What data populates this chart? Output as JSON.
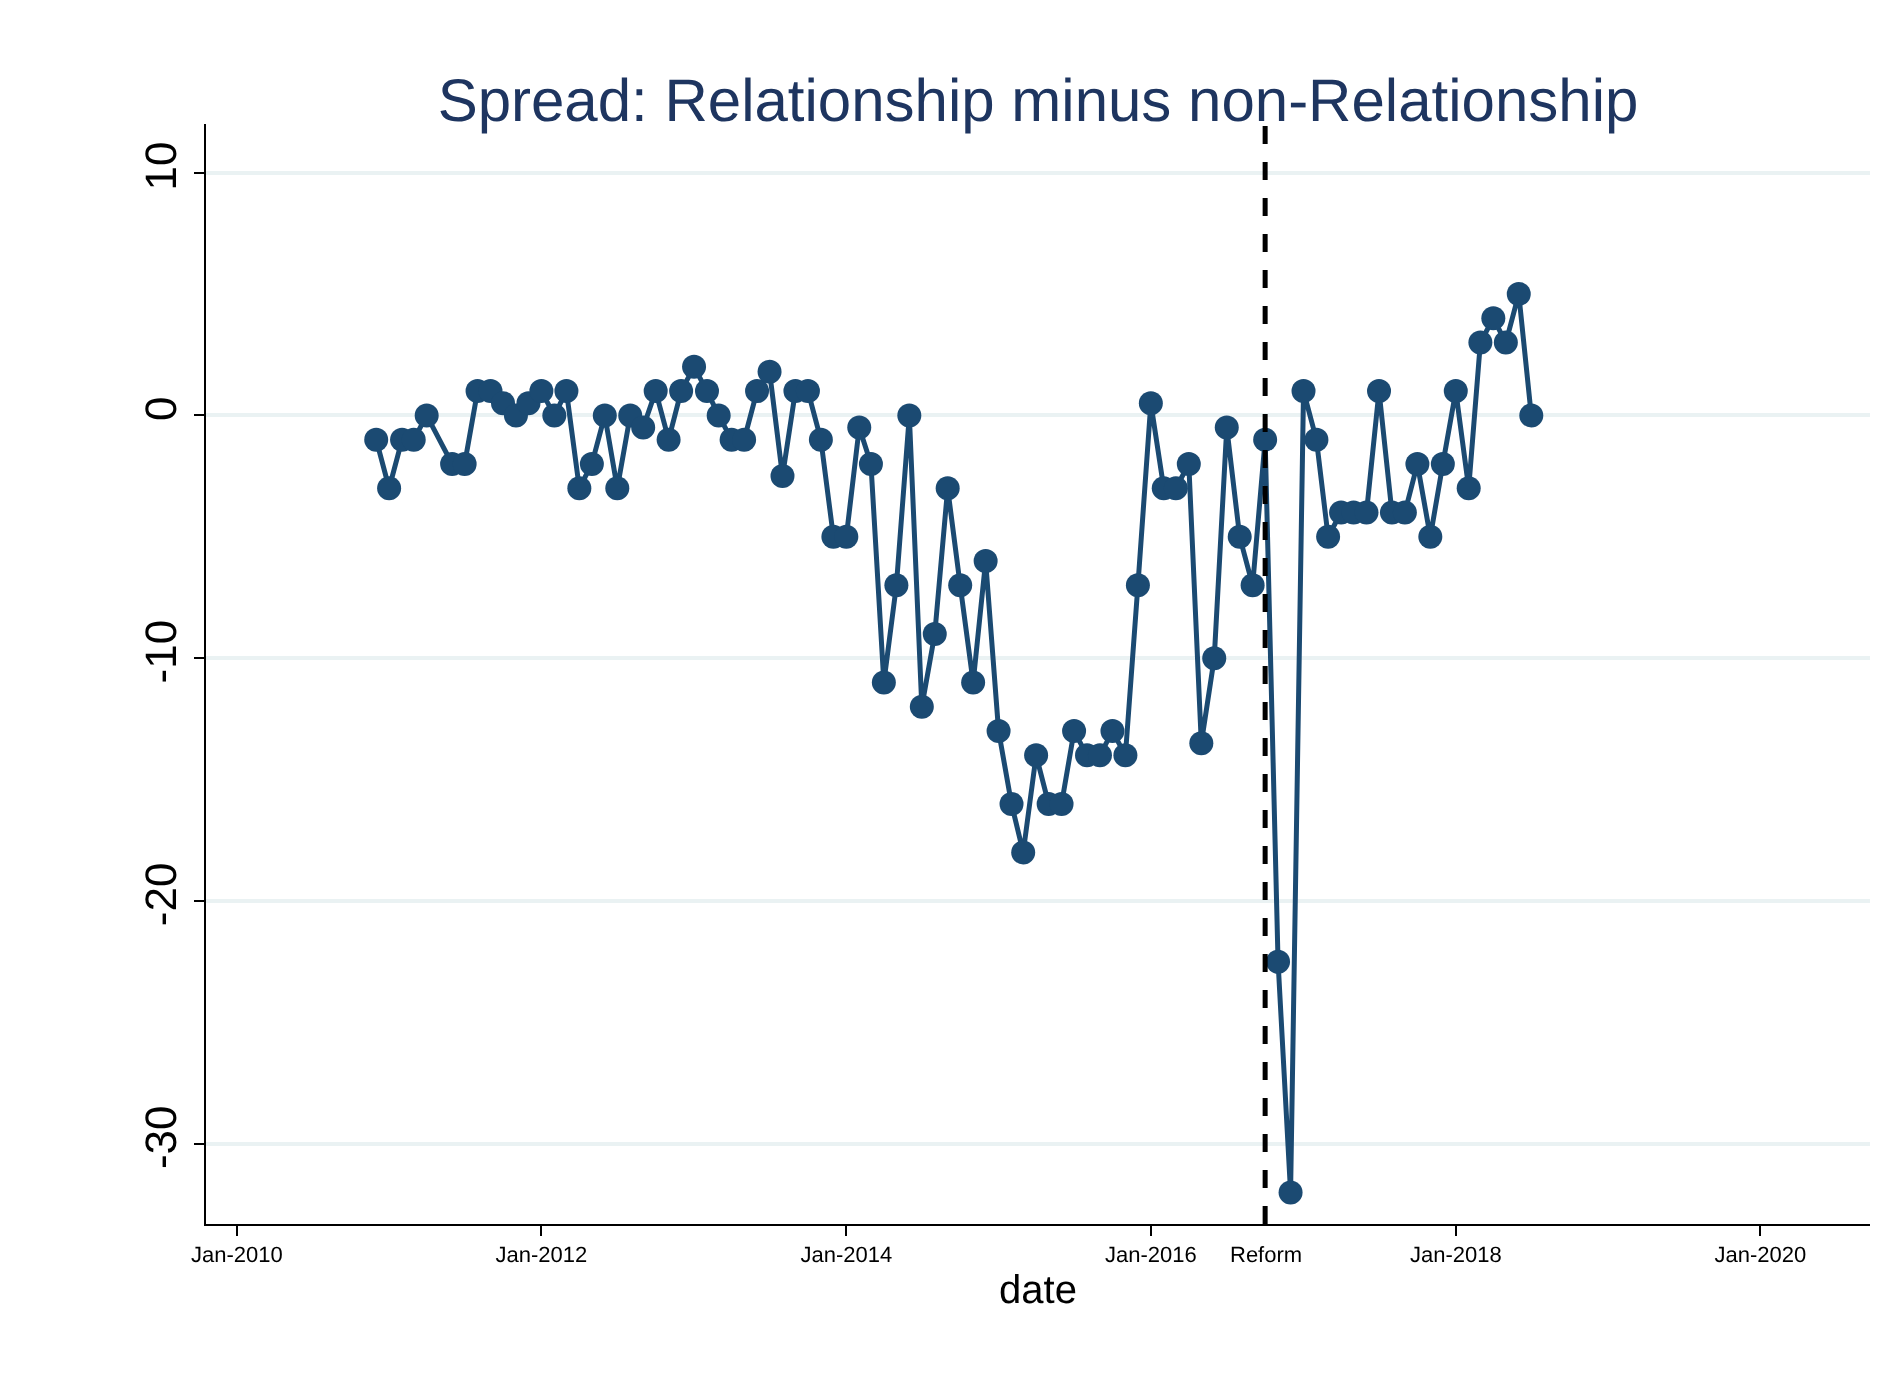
{
  "chart_data": {
    "type": "line",
    "title": "Spread: Relationship minus non-Relationship",
    "xlabel": "date",
    "x": [
      "2010-12",
      "2011-01",
      "2011-02",
      "2011-03",
      "2011-04",
      "2011-06",
      "2011-07",
      "2011-08",
      "2011-09",
      "2011-10",
      "2011-11",
      "2011-12",
      "2012-01",
      "2012-02",
      "2012-03",
      "2012-04",
      "2012-05",
      "2012-06",
      "2012-07",
      "2012-08",
      "2012-09",
      "2012-10",
      "2012-11",
      "2012-12",
      "2013-01",
      "2013-02",
      "2013-03",
      "2013-04",
      "2013-05",
      "2013-06",
      "2013-07",
      "2013-08",
      "2013-09",
      "2013-10",
      "2013-11",
      "2013-12",
      "2014-01",
      "2014-02",
      "2014-03",
      "2014-04",
      "2014-05",
      "2014-06",
      "2014-07",
      "2014-08",
      "2014-09",
      "2014-10",
      "2014-11",
      "2014-12",
      "2015-01",
      "2015-02",
      "2015-03",
      "2015-04",
      "2015-05",
      "2015-06",
      "2015-07",
      "2015-08",
      "2015-09",
      "2015-10",
      "2015-11",
      "2015-12",
      "2016-01",
      "2016-02",
      "2016-03",
      "2016-04",
      "2016-05",
      "2016-06",
      "2016-07",
      "2016-08",
      "2016-09",
      "2016-10",
      "2016-11",
      "2016-12",
      "2017-01",
      "2017-02",
      "2017-03",
      "2017-04",
      "2017-05",
      "2017-06",
      "2017-07",
      "2017-08",
      "2017-09",
      "2017-10",
      "2017-11",
      "2017-12",
      "2018-01",
      "2018-02",
      "2018-03",
      "2018-04",
      "2018-05",
      "2018-06",
      "2018-07"
    ],
    "series": [
      {
        "color": "#1b4a72",
        "values": [
          -1,
          -3,
          -1,
          -1,
          0,
          -2,
          -2,
          1,
          1,
          0.5,
          0,
          0.5,
          1,
          0,
          1,
          -3,
          -2,
          0,
          -3,
          0,
          -0.5,
          1,
          -1,
          1,
          2,
          1,
          0,
          -1,
          -1,
          1,
          1.8,
          -2.5,
          1,
          1,
          -1,
          -5,
          -5,
          -0.5,
          -2,
          -11,
          -7,
          0,
          -12,
          -9,
          -3,
          -7,
          -11,
          -6,
          -13,
          -16,
          -18,
          -14,
          -16,
          -16,
          -13,
          -14,
          -14,
          -13,
          -14,
          -7,
          0.5,
          -3,
          -3,
          -2,
          -13.5,
          -10,
          -0.5,
          -5,
          -7,
          -1,
          -22.5,
          -32,
          1,
          -1,
          -5,
          -4,
          -4,
          -4,
          1,
          -4,
          -4,
          -2,
          -5,
          -2,
          1,
          -3,
          3,
          4,
          3,
          5,
          0
        ]
      }
    ],
    "marker": "circle",
    "line_style": "solid",
    "grid": "y",
    "xlim": [
      "2009-10-19",
      "2020-09-20"
    ],
    "xticks": [
      {
        "value": "2010-01",
        "label": "Jan-2010"
      },
      {
        "value": "2012-01",
        "label": "Jan-2012"
      },
      {
        "value": "2014-01",
        "label": "Jan-2014"
      },
      {
        "value": "2016-01",
        "label": "Jan-2016"
      },
      {
        "value": "2018-01",
        "label": "Jan-2018"
      },
      {
        "value": "2020-01",
        "label": "Jan-2020"
      }
    ],
    "ylim": [
      -33.3,
      12
    ],
    "yticks": [
      -30,
      -20,
      -10,
      0,
      10
    ],
    "ref_lines": [
      {
        "axis": "x",
        "value": "2016-10",
        "label": "Reform",
        "color": "#000000",
        "line_style": "dashed"
      }
    ]
  }
}
